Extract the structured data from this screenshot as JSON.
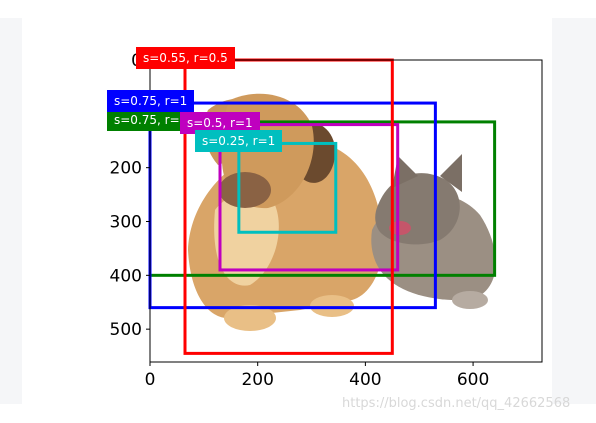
{
  "chart_data": {
    "type": "image_with_bounding_boxes",
    "image_subject": "puppy and kitten photo",
    "x_ticks": [
      "0",
      "200",
      "400",
      "600"
    ],
    "y_ticks": [
      "0",
      "200",
      "300",
      "400",
      "500"
    ],
    "xlim": [
      0,
      728
    ],
    "ylim": [
      561,
      0
    ],
    "boxes": [
      {
        "label": "s=0.75, r=2",
        "color": "#008000",
        "x0": 0,
        "y0": 115,
        "x1": 640,
        "y1": 400
      },
      {
        "label": "s=0.75, r=1",
        "color": "#0000ff",
        "x0": 0,
        "y0": 80,
        "x1": 530,
        "y1": 460
      },
      {
        "label": "s=0.5, r=1",
        "color": "#bf00bf",
        "x0": 130,
        "y0": 120,
        "x1": 460,
        "y1": 390
      },
      {
        "label": "s=0.55, r=0.5",
        "color": "#ff0000",
        "x0": 65,
        "y0": 0,
        "x1": 450,
        "y1": 545
      },
      {
        "label": "s=0.25, r=1",
        "color": "#00bfbf",
        "x0": 165,
        "y0": 155,
        "x1": 345,
        "y1": 320
      }
    ]
  },
  "watermark": "https://blog.csdn.net/qq_42662568"
}
